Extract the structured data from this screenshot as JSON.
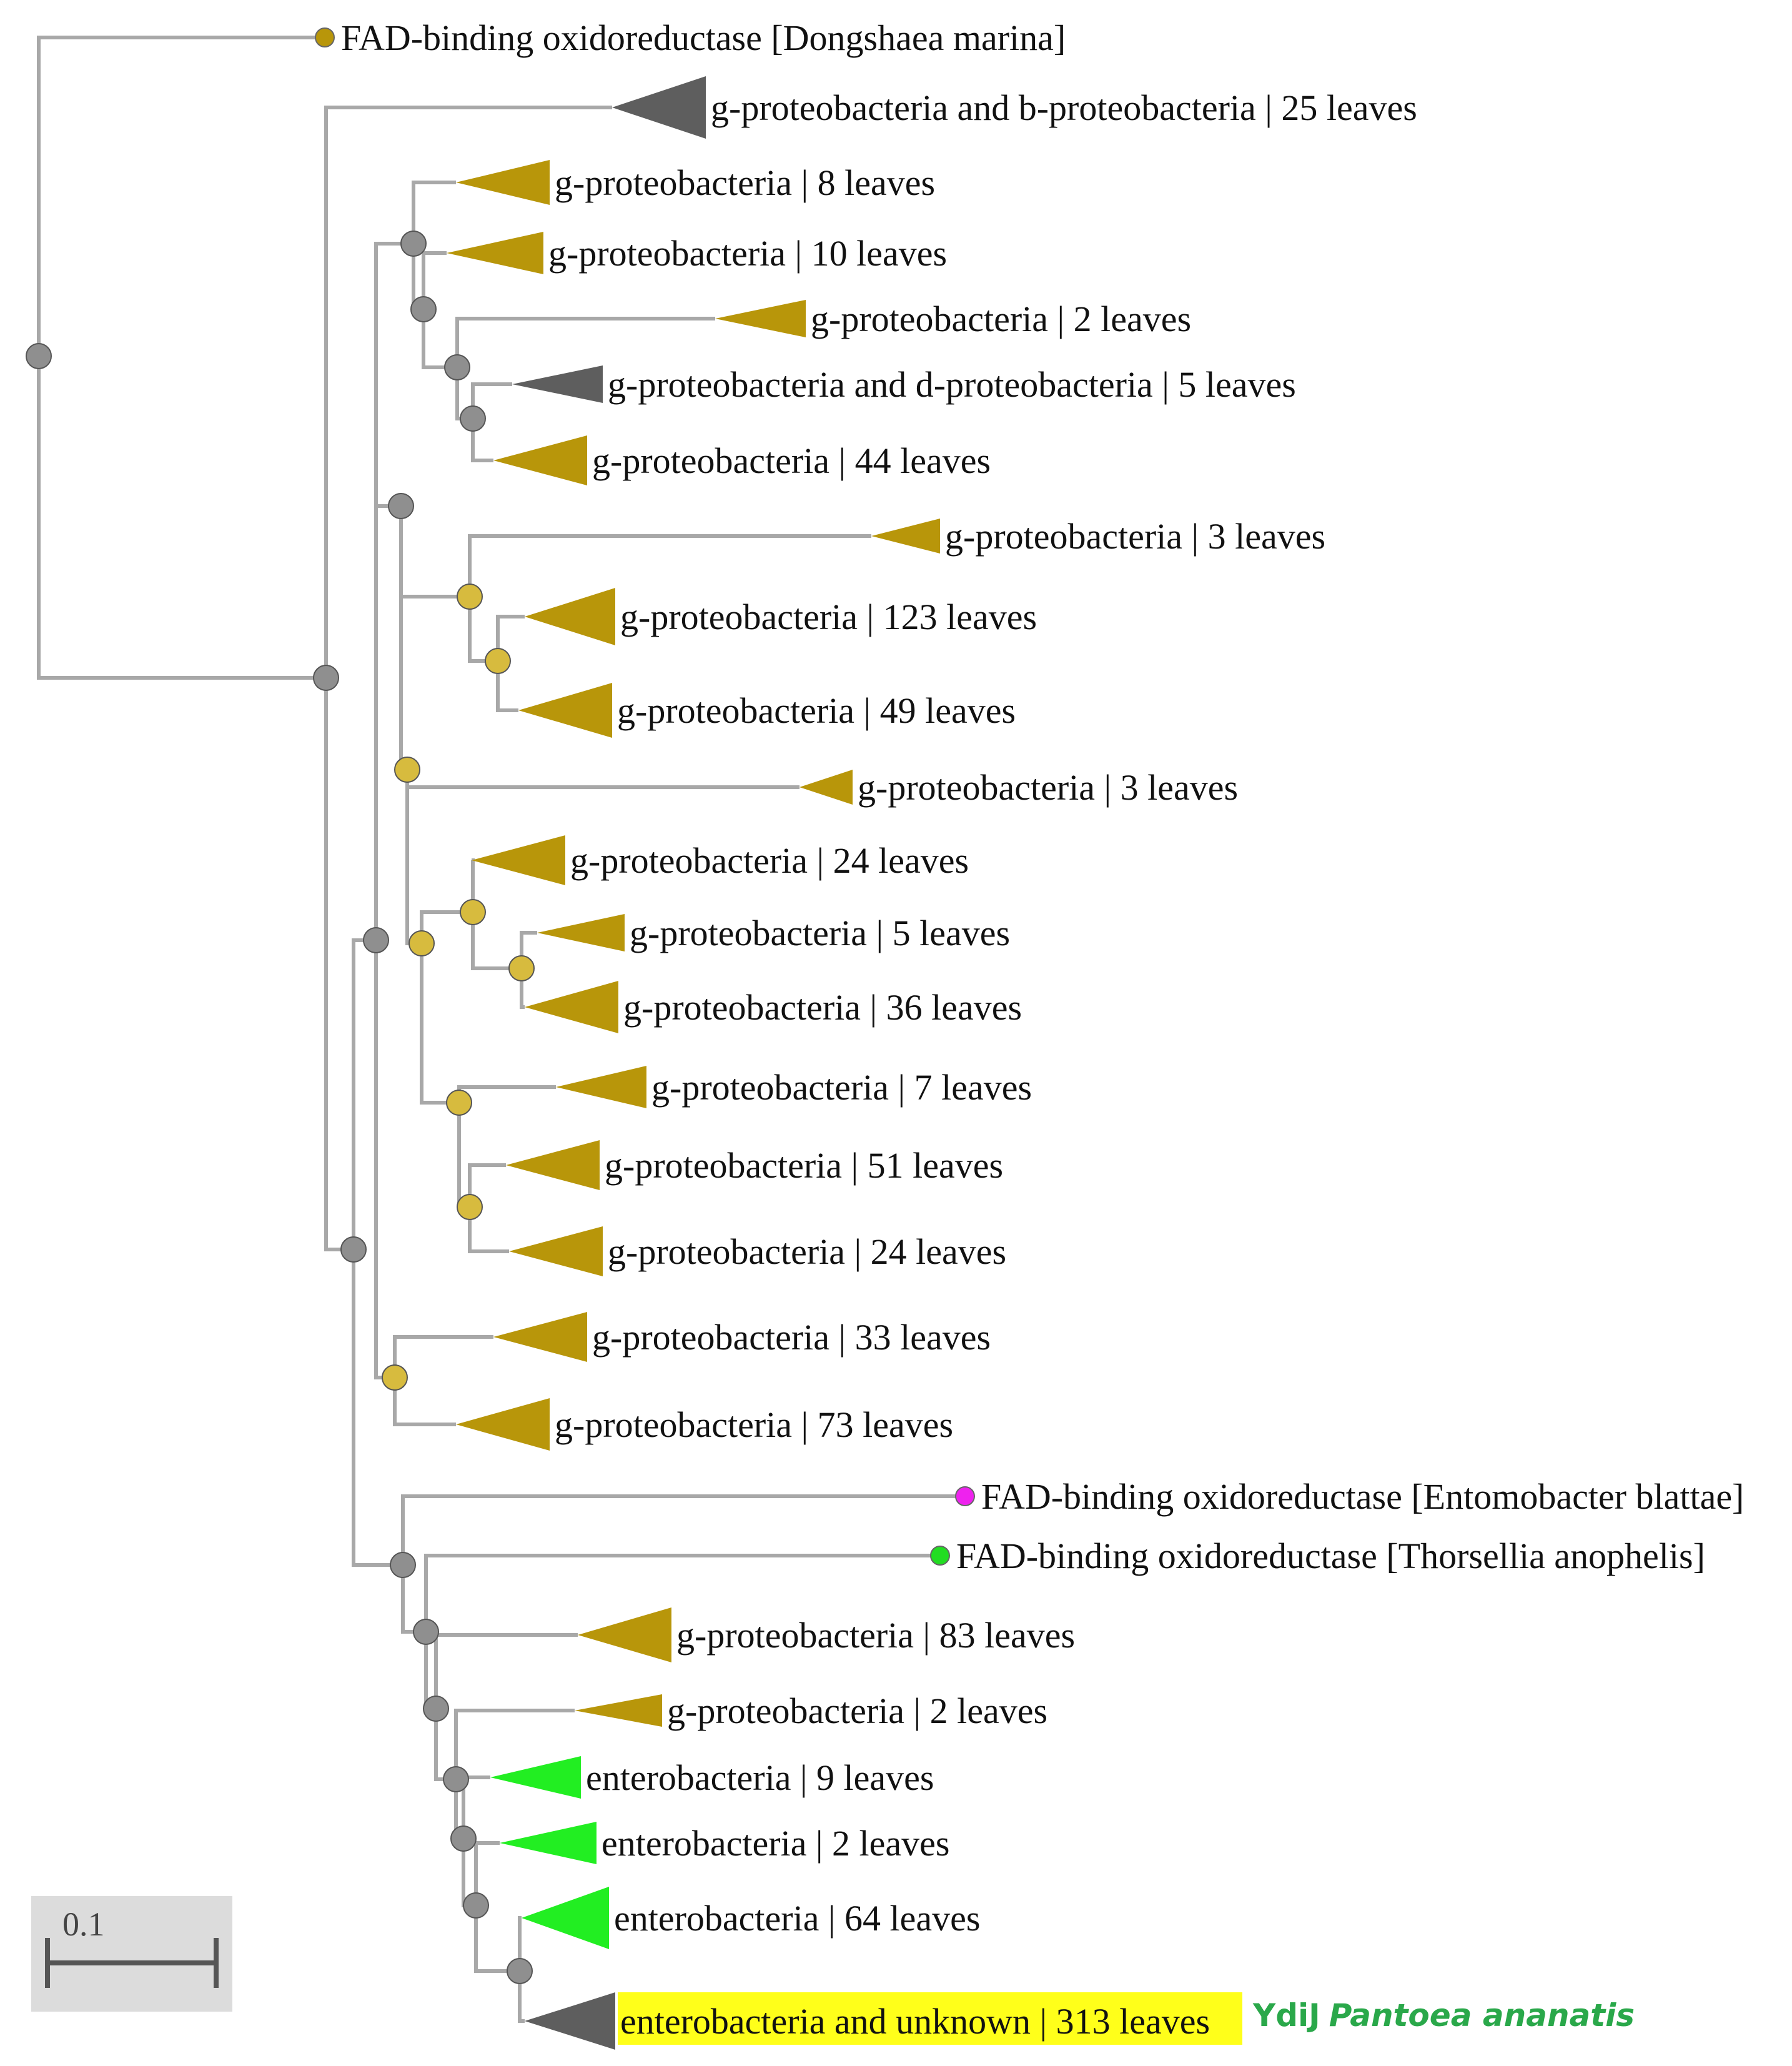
{
  "colors": {
    "olive": "#b8960a",
    "gray": "#5e5e5e",
    "green": "#22ee22",
    "magenta": "#ee22ee",
    "leaf_green": "#22dd22",
    "node_gray": "#8f8f8f",
    "node_gold": "#d7bb3e",
    "highlight": "#ffff1a",
    "branch": "#a8a8a8"
  },
  "leaves": [
    {
      "id": "dongshaea",
      "kind": "leaf",
      "color": "olive",
      "label": "FAD-binding oxidoreductase [Dongshaea marina]"
    },
    {
      "id": "c1",
      "kind": "clade",
      "color": "gray",
      "label": "g-proteobacteria and b-proteobacteria | 25 leaves"
    },
    {
      "id": "c2",
      "kind": "clade",
      "color": "olive",
      "label": "g-proteobacteria | 8 leaves"
    },
    {
      "id": "c3",
      "kind": "clade",
      "color": "olive",
      "label": "g-proteobacteria | 10 leaves"
    },
    {
      "id": "c4",
      "kind": "clade",
      "color": "olive",
      "label": "g-proteobacteria | 2 leaves"
    },
    {
      "id": "c5",
      "kind": "clade",
      "color": "gray",
      "label": "g-proteobacteria and d-proteobacteria | 5 leaves"
    },
    {
      "id": "c6",
      "kind": "clade",
      "color": "olive",
      "label": "g-proteobacteria | 44 leaves"
    },
    {
      "id": "c7",
      "kind": "clade",
      "color": "olive",
      "label": "g-proteobacteria | 3 leaves"
    },
    {
      "id": "c8",
      "kind": "clade",
      "color": "olive",
      "label": "g-proteobacteria | 123 leaves"
    },
    {
      "id": "c9",
      "kind": "clade",
      "color": "olive",
      "label": "g-proteobacteria | 49 leaves"
    },
    {
      "id": "c10",
      "kind": "clade",
      "color": "olive",
      "label": "g-proteobacteria | 3 leaves"
    },
    {
      "id": "c11",
      "kind": "clade",
      "color": "olive",
      "label": "g-proteobacteria | 24 leaves"
    },
    {
      "id": "c12",
      "kind": "clade",
      "color": "olive",
      "label": "g-proteobacteria | 5 leaves"
    },
    {
      "id": "c13",
      "kind": "clade",
      "color": "olive",
      "label": "g-proteobacteria | 36 leaves"
    },
    {
      "id": "c14",
      "kind": "clade",
      "color": "olive",
      "label": "g-proteobacteria | 7 leaves"
    },
    {
      "id": "c15",
      "kind": "clade",
      "color": "olive",
      "label": "g-proteobacteria | 51 leaves"
    },
    {
      "id": "c16",
      "kind": "clade",
      "color": "olive",
      "label": "g-proteobacteria | 24 leaves"
    },
    {
      "id": "c17",
      "kind": "clade",
      "color": "olive",
      "label": "g-proteobacteria | 33 leaves"
    },
    {
      "id": "c18",
      "kind": "clade",
      "color": "olive",
      "label": "g-proteobacteria | 73 leaves"
    },
    {
      "id": "entomobacter",
      "kind": "leaf",
      "color": "magenta",
      "label": "FAD-binding oxidoreductase [Entomobacter blattae]"
    },
    {
      "id": "thorsellia",
      "kind": "leaf",
      "color": "leaf_green",
      "label": "FAD-binding oxidoreductase [Thorsellia anophelis]"
    },
    {
      "id": "c19",
      "kind": "clade",
      "color": "olive",
      "label": "g-proteobacteria | 83 leaves"
    },
    {
      "id": "c20",
      "kind": "clade",
      "color": "olive",
      "label": "g-proteobacteria | 2 leaves"
    },
    {
      "id": "c21",
      "kind": "clade",
      "color": "green",
      "label": "enterobacteria | 9 leaves"
    },
    {
      "id": "c22",
      "kind": "clade",
      "color": "green",
      "label": "enterobacteria | 2 leaves"
    },
    {
      "id": "c23",
      "kind": "clade",
      "color": "green",
      "label": "enterobacteria | 64 leaves"
    },
    {
      "id": "c24",
      "kind": "clade",
      "color": "gray",
      "label": "enterobacteria and unknown | 313 leaves",
      "highlighted": true
    }
  ],
  "annotation": {
    "protein": "YdiJ",
    "species": "Pantoea ananatis"
  },
  "scale_bar": {
    "label": "0.1",
    "value": 0.1
  }
}
